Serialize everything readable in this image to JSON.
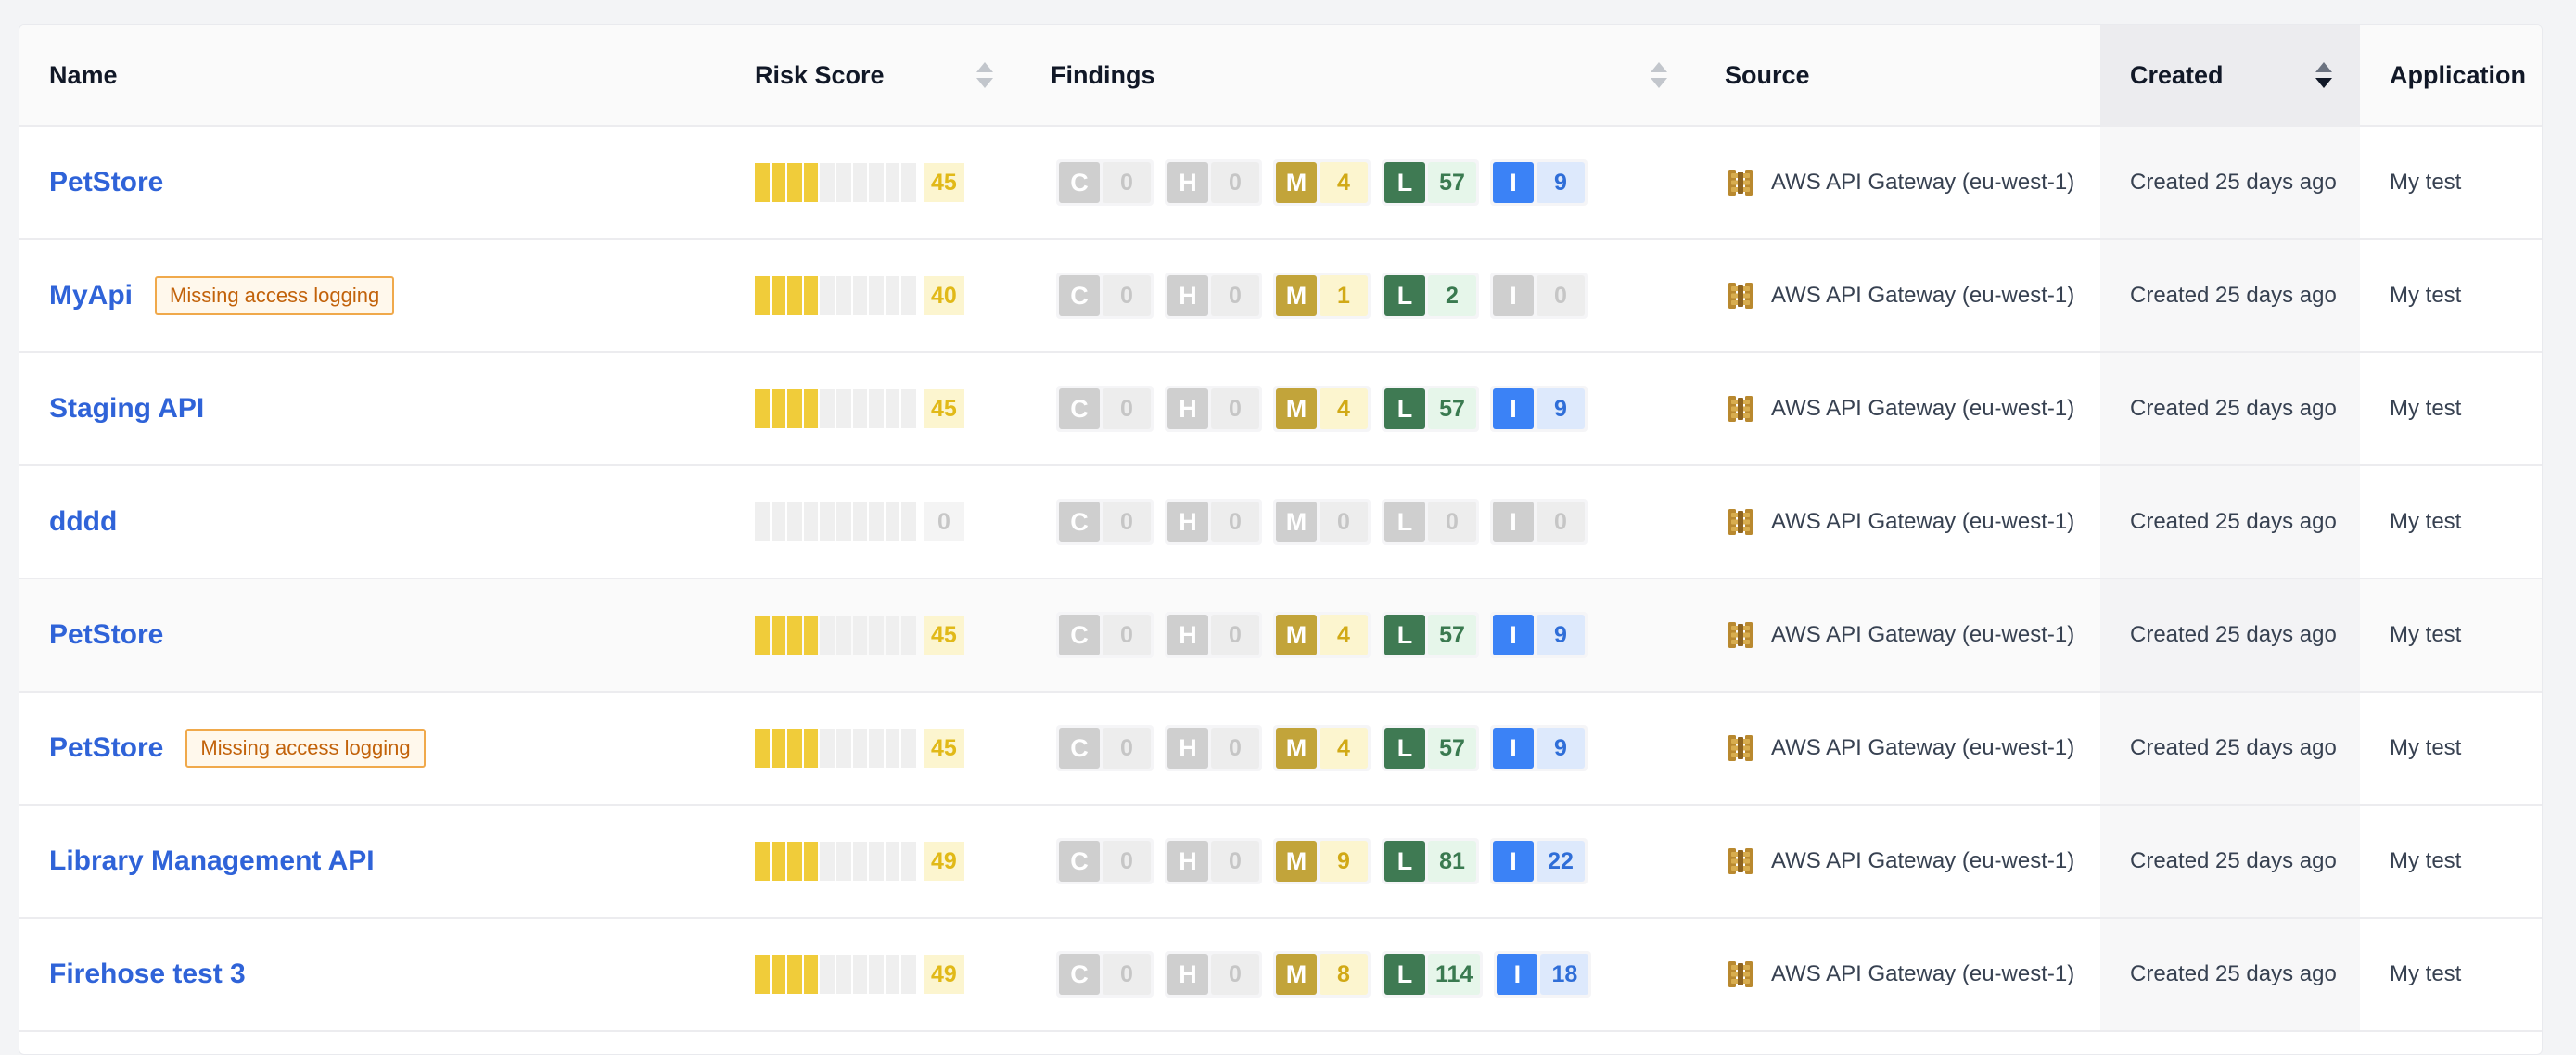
{
  "columns": {
    "name": "Name",
    "risk_score": "Risk Score",
    "findings": "Findings",
    "source": "Source",
    "created": "Created",
    "application": "Application"
  },
  "severity_letters": {
    "critical": "C",
    "high": "H",
    "medium": "M",
    "low": "L",
    "info": "I"
  },
  "source_icon": "aws-api-gateway-icon",
  "colors": {
    "link": "#2f63d8",
    "risk_bar": "#f0cc3a",
    "medium": "#c2a43a",
    "low": "#3f7a53",
    "info": "#3b82f6",
    "warning_badge": "#f0a94b"
  },
  "rows": [
    {
      "name": "PetStore",
      "badge": "",
      "risk_score": "45",
      "risk_fraction": 0.45,
      "findings": {
        "c": "0",
        "h": "0",
        "m": "4",
        "l": "57",
        "i": "9"
      },
      "source": "AWS API Gateway (eu-west-1)",
      "created": "Created 25 days ago",
      "application": "My test"
    },
    {
      "name": "MyApi",
      "badge": "Missing access logging",
      "risk_score": "40",
      "risk_fraction": 0.4,
      "findings": {
        "c": "0",
        "h": "0",
        "m": "1",
        "l": "2",
        "i": "0"
      },
      "source": "AWS API Gateway (eu-west-1)",
      "created": "Created 25 days ago",
      "application": "My test"
    },
    {
      "name": "Staging API",
      "badge": "",
      "risk_score": "45",
      "risk_fraction": 0.45,
      "findings": {
        "c": "0",
        "h": "0",
        "m": "4",
        "l": "57",
        "i": "9"
      },
      "source": "AWS API Gateway (eu-west-1)",
      "created": "Created 25 days ago",
      "application": "My test"
    },
    {
      "name": "dddd",
      "badge": "",
      "risk_score": "0",
      "risk_fraction": 0,
      "findings": {
        "c": "0",
        "h": "0",
        "m": "0",
        "l": "0",
        "i": "0"
      },
      "source": "AWS API Gateway (eu-west-1)",
      "created": "Created 25 days ago",
      "application": "My test"
    },
    {
      "name": "PetStore",
      "badge": "",
      "risk_score": "45",
      "risk_fraction": 0.45,
      "findings": {
        "c": "0",
        "h": "0",
        "m": "4",
        "l": "57",
        "i": "9"
      },
      "source": "AWS API Gateway (eu-west-1)",
      "created": "Created 25 days ago",
      "application": "My test"
    },
    {
      "name": "PetStore",
      "badge": "Missing access logging",
      "risk_score": "45",
      "risk_fraction": 0.45,
      "findings": {
        "c": "0",
        "h": "0",
        "m": "4",
        "l": "57",
        "i": "9"
      },
      "source": "AWS API Gateway (eu-west-1)",
      "created": "Created 25 days ago",
      "application": "My test"
    },
    {
      "name": "Library Management API",
      "badge": "",
      "risk_score": "49",
      "risk_fraction": 0.49,
      "findings": {
        "c": "0",
        "h": "0",
        "m": "9",
        "l": "81",
        "i": "22"
      },
      "source": "AWS API Gateway (eu-west-1)",
      "created": "Created 25 days ago",
      "application": "My test"
    },
    {
      "name": "Firehose test 3",
      "badge": "",
      "risk_score": "49",
      "risk_fraction": 0.49,
      "findings": {
        "c": "0",
        "h": "0",
        "m": "8",
        "l": "114",
        "i": "18"
      },
      "source": "AWS API Gateway (eu-west-1)",
      "created": "Created 25 days ago",
      "application": "My test"
    }
  ]
}
